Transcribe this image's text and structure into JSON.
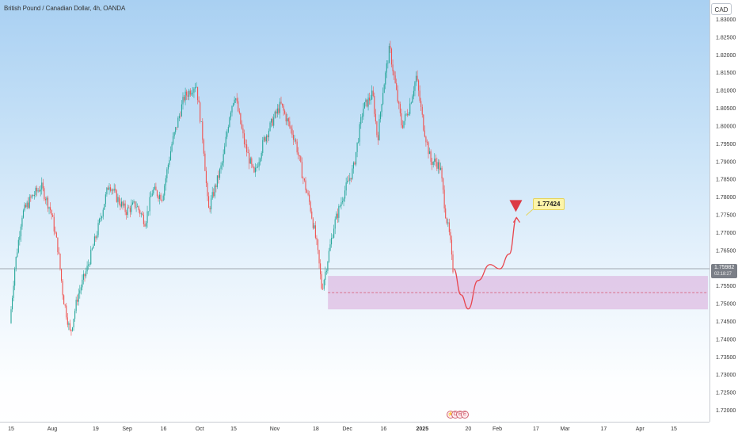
{
  "header": {
    "symbol_title": "British Pound / Canadian Dollar, 4h, OANDA",
    "currency": "CAD"
  },
  "price_scale": {
    "current_price": "1.75982",
    "countdown": "02:18:27"
  },
  "annotations": {
    "target_price": "1.77424"
  },
  "colors": {
    "up_candle": "#26a69a",
    "down_candle": "#ef5350",
    "zone_fill": "#d9a8d8",
    "zone_midline": "#d7516a",
    "projection": "#e8464e",
    "current_price_line": "#8a8f98"
  },
  "events": {
    "icons": [
      "flash-icon",
      "dividend-icon",
      "earnings-icon",
      "earnings-icon"
    ]
  },
  "chart_data": {
    "type": "candlestick",
    "title": "British Pound / Canadian Dollar, 4h, OANDA",
    "xlabel": "",
    "ylabel": "",
    "y_axis_position": "right",
    "grid": false,
    "ylim": [
      1.717,
      1.834
    ],
    "y_ticks": [
      "1.83000",
      "1.82500",
      "1.82000",
      "1.81500",
      "1.81000",
      "1.80500",
      "1.80000",
      "1.79500",
      "1.79000",
      "1.78500",
      "1.78000",
      "1.77500",
      "1.77000",
      "1.76500",
      "1.76000",
      "1.75500",
      "1.75000",
      "1.74500",
      "1.74000",
      "1.73500",
      "1.73000",
      "1.72500",
      "1.72000"
    ],
    "x_ticks": [
      {
        "label": "15",
        "date": "2024-07-15"
      },
      {
        "label": "Aug",
        "date": "2024-08-01"
      },
      {
        "label": "19",
        "date": "2024-08-19"
      },
      {
        "label": "Sep",
        "date": "2024-09-01"
      },
      {
        "label": "16",
        "date": "2024-09-16"
      },
      {
        "label": "Oct",
        "date": "2024-10-01"
      },
      {
        "label": "15",
        "date": "2024-10-15"
      },
      {
        "label": "Nov",
        "date": "2024-11-01"
      },
      {
        "label": "18",
        "date": "2024-11-18"
      },
      {
        "label": "Dec",
        "date": "2024-12-01"
      },
      {
        "label": "16",
        "date": "2024-12-16"
      },
      {
        "label": "2025",
        "date": "2025-01-01"
      },
      {
        "label": "20",
        "date": "2025-01-20"
      },
      {
        "label": "Feb",
        "date": "2025-02-01"
      },
      {
        "label": "17",
        "date": "2025-02-17"
      },
      {
        "label": "Mar",
        "date": "2025-03-01"
      },
      {
        "label": "17",
        "date": "2025-03-17"
      },
      {
        "label": "Apr",
        "date": "2025-04-01"
      },
      {
        "label": "15",
        "date": "2025-04-15"
      }
    ],
    "price_path": [
      {
        "date": "2024-07-15",
        "close": 1.7445
      },
      {
        "date": "2024-07-17",
        "close": 1.76
      },
      {
        "date": "2024-07-20",
        "close": 1.775
      },
      {
        "date": "2024-07-24",
        "close": 1.78
      },
      {
        "date": "2024-07-28",
        "close": 1.783
      },
      {
        "date": "2024-08-01",
        "close": 1.776
      },
      {
        "date": "2024-08-04",
        "close": 1.765
      },
      {
        "date": "2024-08-06",
        "close": 1.752
      },
      {
        "date": "2024-08-09",
        "close": 1.7415
      },
      {
        "date": "2024-08-12",
        "close": 1.752
      },
      {
        "date": "2024-08-16",
        "close": 1.76
      },
      {
        "date": "2024-08-20",
        "close": 1.77
      },
      {
        "date": "2024-08-25",
        "close": 1.784
      },
      {
        "date": "2024-08-28",
        "close": 1.78
      },
      {
        "date": "2024-09-01",
        "close": 1.776
      },
      {
        "date": "2024-09-05",
        "close": 1.778
      },
      {
        "date": "2024-09-09",
        "close": 1.773
      },
      {
        "date": "2024-09-12",
        "close": 1.782
      },
      {
        "date": "2024-09-16",
        "close": 1.78
      },
      {
        "date": "2024-09-20",
        "close": 1.795
      },
      {
        "date": "2024-09-25",
        "close": 1.808
      },
      {
        "date": "2024-09-30",
        "close": 1.812
      },
      {
        "date": "2024-10-03",
        "close": 1.795
      },
      {
        "date": "2024-10-05",
        "close": 1.776
      },
      {
        "date": "2024-10-08",
        "close": 1.783
      },
      {
        "date": "2024-10-11",
        "close": 1.79
      },
      {
        "date": "2024-10-14",
        "close": 1.804
      },
      {
        "date": "2024-10-16",
        "close": 1.809
      },
      {
        "date": "2024-10-20",
        "close": 1.795
      },
      {
        "date": "2024-10-24",
        "close": 1.786
      },
      {
        "date": "2024-10-28",
        "close": 1.796
      },
      {
        "date": "2024-11-01",
        "close": 1.802
      },
      {
        "date": "2024-11-04",
        "close": 1.806
      },
      {
        "date": "2024-11-07",
        "close": 1.801
      },
      {
        "date": "2024-11-10",
        "close": 1.796
      },
      {
        "date": "2024-11-13",
        "close": 1.786
      },
      {
        "date": "2024-11-16",
        "close": 1.778
      },
      {
        "date": "2024-11-19",
        "close": 1.766
      },
      {
        "date": "2024-11-21",
        "close": 1.754
      },
      {
        "date": "2024-11-23",
        "close": 1.761
      },
      {
        "date": "2024-11-26",
        "close": 1.772
      },
      {
        "date": "2024-11-30",
        "close": 1.781
      },
      {
        "date": "2024-12-04",
        "close": 1.788
      },
      {
        "date": "2024-12-08",
        "close": 1.805
      },
      {
        "date": "2024-12-12",
        "close": 1.809
      },
      {
        "date": "2024-12-14",
        "close": 1.796
      },
      {
        "date": "2024-12-16",
        "close": 1.809
      },
      {
        "date": "2024-12-19",
        "close": 1.822
      },
      {
        "date": "2024-12-21",
        "close": 1.813
      },
      {
        "date": "2024-12-24",
        "close": 1.8
      },
      {
        "date": "2024-12-27",
        "close": 1.805
      },
      {
        "date": "2024-12-30",
        "close": 1.814
      },
      {
        "date": "2025-01-02",
        "close": 1.8
      },
      {
        "date": "2025-01-05",
        "close": 1.79
      },
      {
        "date": "2025-01-07",
        "close": 1.79
      },
      {
        "date": "2025-01-09",
        "close": 1.788
      },
      {
        "date": "2025-01-11",
        "close": 1.776
      },
      {
        "date": "2025-01-13",
        "close": 1.768
      },
      {
        "date": "2025-01-14",
        "close": 1.7598
      }
    ],
    "demand_zone": {
      "top": 1.7578,
      "bottom": 1.7484,
      "midline": 1.7531,
      "from": "2024-11-23",
      "to": "2025-04-25"
    },
    "projection_path": [
      {
        "date": "2025-01-14",
        "price": 1.7598
      },
      {
        "date": "2025-01-17",
        "price": 1.7525
      },
      {
        "date": "2025-01-20",
        "price": 1.7485
      },
      {
        "date": "2025-01-24",
        "price": 1.7565
      },
      {
        "date": "2025-01-29",
        "price": 1.761
      },
      {
        "date": "2025-02-02",
        "price": 1.7598
      },
      {
        "date": "2025-02-06",
        "price": 1.764
      },
      {
        "date": "2025-02-09",
        "price": 1.7742
      }
    ],
    "target": {
      "price": 1.77424,
      "date": "2025-02-09"
    },
    "current_price": 1.75982
  }
}
